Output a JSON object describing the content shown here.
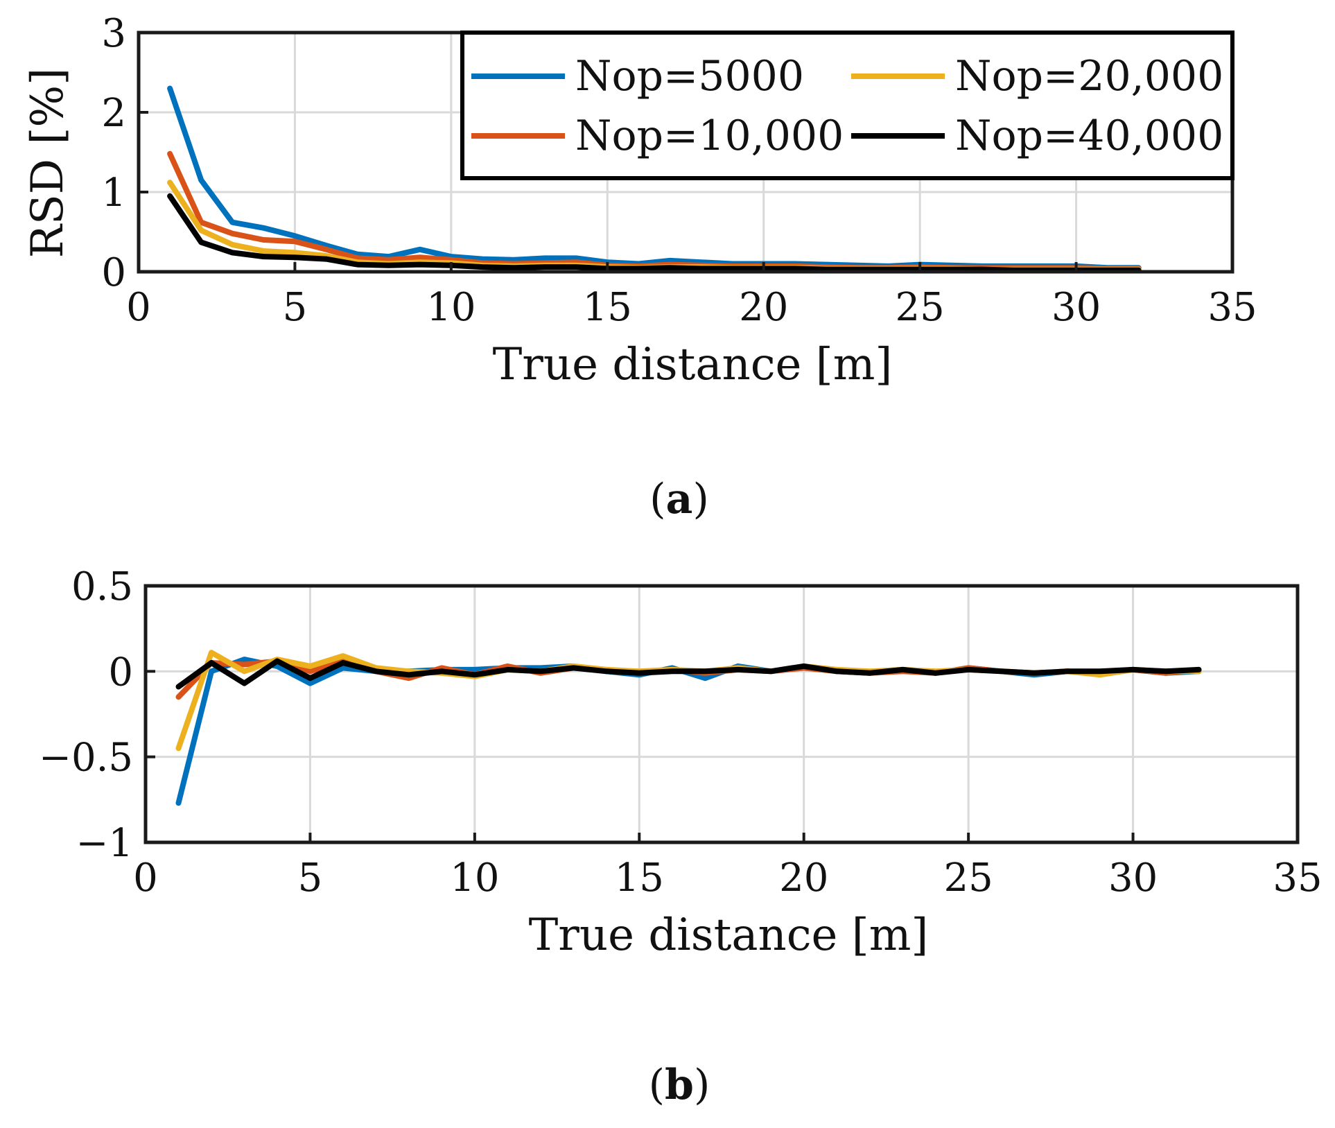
{
  "chart_data": [
    {
      "type": "line",
      "panel": "(a)",
      "panel_letter": "a",
      "xlabel": "True distance [m]",
      "ylabel": "RSD [%]",
      "xlim": [
        0,
        35
      ],
      "ylim": [
        0,
        3
      ],
      "xticks": [
        0,
        5,
        10,
        15,
        20,
        25,
        30,
        35
      ],
      "yticks": [
        0,
        1,
        2,
        3
      ],
      "grid": true,
      "legend_position": "top-right",
      "x": [
        1,
        2,
        3,
        4,
        5,
        6,
        7,
        8,
        9,
        10,
        11,
        12,
        13,
        14,
        15,
        16,
        17,
        18,
        19,
        20,
        21,
        22,
        23,
        24,
        25,
        26,
        27,
        28,
        29,
        30,
        31,
        32
      ],
      "series": [
        {
          "name": "Nop=5000",
          "color": "#0072BD",
          "values": [
            2.3,
            1.15,
            0.62,
            0.55,
            0.45,
            0.33,
            0.22,
            0.19,
            0.28,
            0.19,
            0.16,
            0.15,
            0.17,
            0.17,
            0.12,
            0.1,
            0.14,
            0.12,
            0.1,
            0.1,
            0.1,
            0.09,
            0.08,
            0.07,
            0.09,
            0.08,
            0.07,
            0.07,
            0.07,
            0.07,
            0.05,
            0.05
          ]
        },
        {
          "name": "Nop=10,000",
          "color": "#D95319",
          "values": [
            1.48,
            0.62,
            0.48,
            0.4,
            0.38,
            0.28,
            0.17,
            0.15,
            0.18,
            0.15,
            0.11,
            0.1,
            0.11,
            0.12,
            0.08,
            0.07,
            0.09,
            0.08,
            0.07,
            0.07,
            0.07,
            0.06,
            0.05,
            0.05,
            0.06,
            0.05,
            0.05,
            0.05,
            0.05,
            0.05,
            0.04,
            0.04
          ]
        },
        {
          "name": "Nop=20,000",
          "color": "#EDB120",
          "values": [
            1.12,
            0.52,
            0.34,
            0.26,
            0.24,
            0.2,
            0.12,
            0.1,
            0.12,
            0.11,
            0.08,
            0.07,
            0.08,
            0.08,
            0.06,
            0.05,
            0.06,
            0.06,
            0.05,
            0.05,
            0.05,
            0.04,
            0.04,
            0.04,
            0.04,
            0.04,
            0.03,
            0.03,
            0.03,
            0.03,
            0.03,
            0.03
          ]
        },
        {
          "name": "Nop=40,000",
          "color": "#000000",
          "values": [
            0.95,
            0.37,
            0.24,
            0.19,
            0.18,
            0.16,
            0.09,
            0.08,
            0.09,
            0.08,
            0.06,
            0.05,
            0.06,
            0.06,
            0.04,
            0.04,
            0.05,
            0.04,
            0.04,
            0.04,
            0.04,
            0.03,
            0.03,
            0.03,
            0.03,
            0.03,
            0.03,
            0.02,
            0.02,
            0.02,
            0.02,
            0.02
          ]
        }
      ]
    },
    {
      "type": "line",
      "panel": "(b)",
      "panel_letter": "b",
      "xlabel": "True distance [m]",
      "ylabel": "",
      "xlim": [
        0,
        35
      ],
      "ylim": [
        -1,
        0.5
      ],
      "xticks": [
        0,
        5,
        10,
        15,
        20,
        25,
        30,
        35
      ],
      "yticks": [
        -1,
        -0.5,
        0,
        0.5
      ],
      "ytick_labels": [
        "−1",
        "−0.5",
        "0",
        "0.5"
      ],
      "grid": true,
      "x": [
        1,
        2,
        3,
        4,
        5,
        6,
        7,
        8,
        9,
        10,
        11,
        12,
        13,
        14,
        15,
        16,
        17,
        18,
        19,
        20,
        21,
        22,
        23,
        24,
        25,
        26,
        27,
        28,
        29,
        30,
        31,
        32
      ],
      "series": [
        {
          "name": "Nop=5000",
          "color": "#0072BD",
          "values": [
            -0.77,
            0.0,
            0.07,
            0.03,
            -0.07,
            0.02,
            0.0,
            0.0,
            0.01,
            0.01,
            0.02,
            0.02,
            0.03,
            0.0,
            -0.02,
            0.02,
            -0.04,
            0.03,
            0.0,
            0.03,
            0.0,
            -0.01,
            0.01,
            -0.01,
            0.02,
            0.0,
            -0.02,
            0.0,
            -0.01,
            0.01,
            -0.01,
            0.0
          ]
        },
        {
          "name": "Nop=10,000",
          "color": "#D95319",
          "values": [
            -0.15,
            0.05,
            0.04,
            0.06,
            0.0,
            0.06,
            0.0,
            -0.04,
            0.02,
            -0.02,
            0.03,
            -0.01,
            0.02,
            0.01,
            -0.01,
            0.01,
            -0.01,
            0.01,
            0.0,
            0.02,
            0.0,
            -0.01,
            0.0,
            -0.01,
            0.02,
            0.0,
            -0.01,
            0.0,
            -0.01,
            0.01,
            -0.01,
            0.01
          ]
        },
        {
          "name": "Nop=20,000",
          "color": "#EDB120",
          "values": [
            -0.45,
            0.11,
            0.0,
            0.07,
            0.03,
            0.09,
            0.02,
            0.0,
            -0.01,
            -0.03,
            0.01,
            0.0,
            0.03,
            0.01,
            0.0,
            0.01,
            0.0,
            0.02,
            0.0,
            0.03,
            0.01,
            0.0,
            0.01,
            0.0,
            0.01,
            0.0,
            -0.01,
            0.0,
            -0.02,
            0.01,
            0.0,
            0.0
          ]
        },
        {
          "name": "Nop=40,000",
          "color": "#000000",
          "values": [
            -0.09,
            0.05,
            -0.07,
            0.06,
            -0.04,
            0.05,
            0.0,
            -0.02,
            0.0,
            -0.02,
            0.01,
            0.0,
            0.02,
            0.0,
            -0.01,
            0.0,
            0.0,
            0.01,
            0.0,
            0.03,
            0.0,
            -0.01,
            0.01,
            -0.01,
            0.01,
            0.0,
            -0.01,
            0.0,
            0.0,
            0.01,
            0.0,
            0.01
          ]
        }
      ]
    }
  ]
}
